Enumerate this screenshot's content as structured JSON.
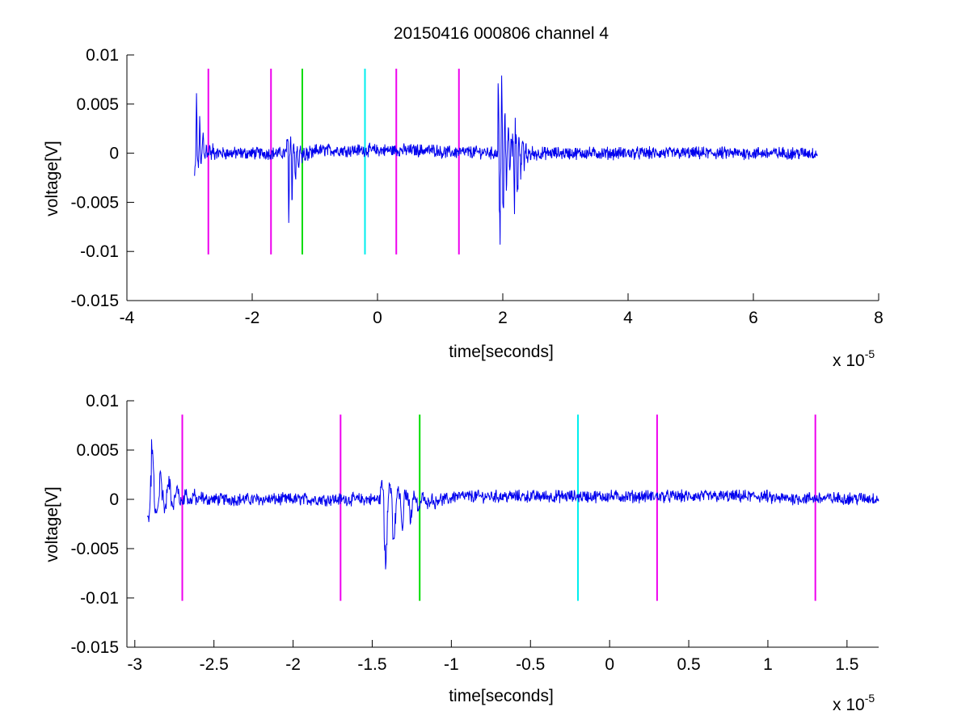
{
  "colors": {
    "signal": "#0000ee",
    "marker_magenta": "#ee00ee",
    "marker_green": "#00dd00",
    "marker_cyan": "#00eeee",
    "axes": "#000000"
  },
  "chart_data": [
    {
      "type": "line",
      "title": "20150416 000806 channel 4",
      "xlabel": "time[seconds]",
      "ylabel": "voltage[V]",
      "x_multiplier_label": "x 10",
      "x_multiplier_exponent": "-5",
      "xlim": [
        -4,
        8
      ],
      "ylim": [
        -0.015,
        0.01
      ],
      "x_ticks": [
        -4,
        -2,
        0,
        2,
        4,
        6,
        8
      ],
      "x_tick_labels": [
        "-4",
        "-2",
        "0",
        "2",
        "4",
        "6",
        "8"
      ],
      "y_ticks": [
        0.01,
        0.005,
        0,
        -0.005,
        -0.01,
        -0.015
      ],
      "y_tick_labels": [
        "0.01",
        "0.005",
        "0",
        "-0.005",
        "-0.01",
        "-0.015"
      ],
      "grid": false,
      "legend": "none",
      "signal_range": [
        -2.92,
        7.02
      ],
      "signal_bursts": [
        {
          "t": -2.9,
          "min": -0.0023,
          "max": 0.0061
        },
        {
          "t": -1.4,
          "min": -0.0071,
          "max": 0.0017
        },
        {
          "t": 1.97,
          "min": -0.0093,
          "max": 0.0079
        },
        {
          "t": 2.2,
          "min": -0.0062,
          "max": 0.0036
        }
      ],
      "markers": [
        {
          "x": -2.7,
          "color": "#ee00ee",
          "ymin": -0.0103,
          "ymax": 0.0086
        },
        {
          "x": -1.7,
          "color": "#ee00ee",
          "ymin": -0.0103,
          "ymax": 0.0086
        },
        {
          "x": -1.2,
          "color": "#00dd00",
          "ymin": -0.0103,
          "ymax": 0.0086
        },
        {
          "x": -0.2,
          "color": "#00eeee",
          "ymin": -0.0103,
          "ymax": 0.0086
        },
        {
          "x": 0.3,
          "color": "#ee00ee",
          "ymin": -0.0103,
          "ymax": 0.0086
        },
        {
          "x": 1.3,
          "color": "#ee00ee",
          "ymin": -0.0103,
          "ymax": 0.0086
        }
      ]
    },
    {
      "type": "line",
      "title": "",
      "xlabel": "time[seconds]",
      "ylabel": "voltage[V]",
      "x_multiplier_label": "x 10",
      "x_multiplier_exponent": "-5",
      "xlim": [
        -3.05,
        1.7
      ],
      "ylim": [
        -0.015,
        0.01
      ],
      "x_ticks": [
        -3,
        -2.5,
        -2,
        -1.5,
        -1,
        -0.5,
        0,
        0.5,
        1,
        1.5
      ],
      "x_tick_labels": [
        "-3",
        "-2.5",
        "-2",
        "-1.5",
        "-1",
        "-0.5",
        "0",
        "0.5",
        "1",
        "1.5"
      ],
      "y_ticks": [
        0.01,
        0.005,
        0,
        -0.005,
        -0.01,
        -0.015
      ],
      "y_tick_labels": [
        "0.01",
        "0.005",
        "0",
        "-0.005",
        "-0.01",
        "-0.015"
      ],
      "grid": false,
      "legend": "none",
      "signal_range": [
        -2.92,
        1.7
      ],
      "signal_bursts": [
        {
          "t": -2.9,
          "min": -0.0023,
          "max": 0.0061
        },
        {
          "t": -1.4,
          "min": -0.0071,
          "max": 0.0017
        }
      ],
      "markers": [
        {
          "x": -2.7,
          "color": "#ee00ee",
          "ymin": -0.0103,
          "ymax": 0.0086
        },
        {
          "x": -1.7,
          "color": "#ee00ee",
          "ymin": -0.0103,
          "ymax": 0.0086
        },
        {
          "x": -1.2,
          "color": "#00dd00",
          "ymin": -0.0103,
          "ymax": 0.0086
        },
        {
          "x": -0.2,
          "color": "#00eeee",
          "ymin": -0.0103,
          "ymax": 0.0086
        },
        {
          "x": 0.3,
          "color": "#ee00ee",
          "ymin": -0.0103,
          "ymax": 0.0086
        },
        {
          "x": 1.3,
          "color": "#ee00ee",
          "ymin": -0.0103,
          "ymax": 0.0086
        }
      ]
    }
  ]
}
